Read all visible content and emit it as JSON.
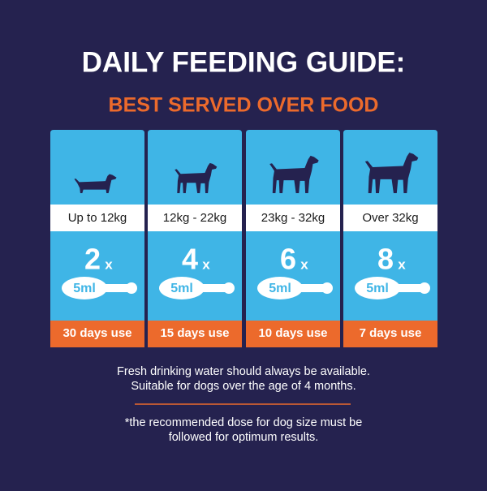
{
  "header": {
    "title": "DAILY FEEDING GUIDE:",
    "subtitle": "BEST SERVED OVER FOOD"
  },
  "cards": [
    {
      "size": "Up to 12kg",
      "count": 2,
      "multiplier": "x",
      "dose": "5ml",
      "duration": "30 days use"
    },
    {
      "size": "12kg - 22kg",
      "count": 4,
      "multiplier": "x",
      "dose": "5ml",
      "duration": "15 days use"
    },
    {
      "size": "23kg - 32kg",
      "count": 6,
      "multiplier": "x",
      "dose": "5ml",
      "duration": "10 days use"
    },
    {
      "size": "Over 32kg",
      "count": 8,
      "multiplier": "x",
      "dose": "5ml",
      "duration": "7 days use"
    }
  ],
  "notes": [
    "Fresh drinking water should always be available.",
    "Suitable for dogs over the age of 4 months."
  ],
  "footnote": [
    "*the recommended dose for dog size must be",
    "followed for optimum results."
  ]
}
